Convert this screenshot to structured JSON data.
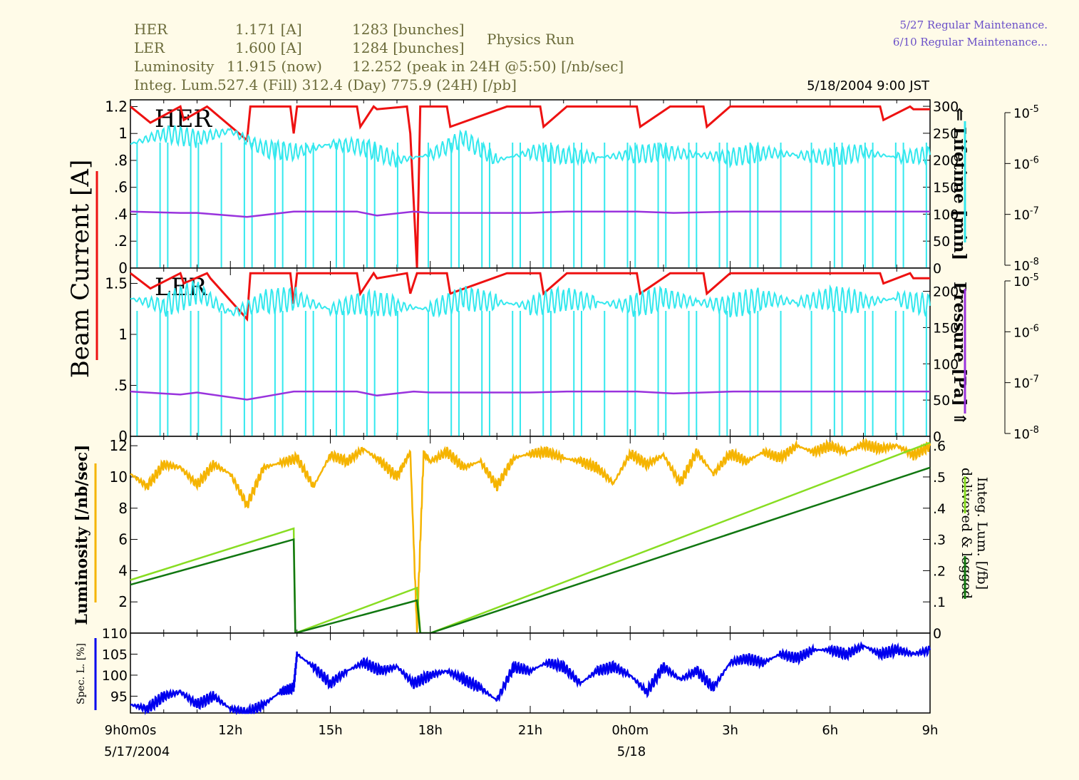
{
  "header": {
    "her_label": "HER",
    "her_current": "1.171  [A]",
    "her_bunches": "1283 [bunches]",
    "ler_label": "LER",
    "ler_current": "1.600  [A]",
    "ler_bunches": "1284 [bunches]",
    "lum_label": "Luminosity",
    "lum_now": "11.915  (now)",
    "lum_peak": "12.252  (peak in 24H @5:50) [/nb/sec]",
    "integ_label": "Integ. Lum.",
    "integ_values": "527.4 (Fill)   312.4 (Day)   775.9 (24H) [/pb]",
    "run_mode": "Physics Run",
    "maintenance_1": "5/27 Regular Maintenance.",
    "maintenance_2": "6/10 Regular Maintenance...",
    "timestamp": "5/18/2004 9:00 JST"
  },
  "labels": {
    "beam_current": "Beam Current [A]",
    "lifetime": "⇐ Lifetime [min]",
    "pressure": "Pressure [Pa] ⇑",
    "luminosity": "Luminosity [/nb/sec]",
    "integ_lum_1": "Integ. Lum. [/fb]",
    "integ_lum_2": "delivered & logged",
    "spec_l": "Spec. L. [%]",
    "her_panel": "HER",
    "ler_panel": "LER",
    "date_start": "5/17/2004",
    "date_mid": "5/18"
  },
  "colors": {
    "current": "#ee1111",
    "lifetime": "#33e8ee",
    "pressure": "#9933dd",
    "luminosity": "#f5b400",
    "integ_delivered": "#88dd22",
    "integ_logged": "#117711",
    "spec_lum": "#0000ee",
    "background": "#fffbe8"
  },
  "chart_data": [
    {
      "type": "line",
      "title": "HER",
      "x_ticks": [
        "9h0m0s",
        "12h",
        "15h",
        "18h",
        "21h",
        "0h0m",
        "3h",
        "6h",
        "9h"
      ],
      "xlim_hours": [
        9,
        33
      ],
      "y_left": {
        "label": "Beam Current [A]",
        "ticks": [
          "0",
          ".2",
          ".4",
          ".6",
          ".8",
          "1",
          "1.2"
        ],
        "range": [
          0,
          1.25
        ]
      },
      "y_right": {
        "label": "Lifetime [min]",
        "ticks": [
          "0",
          "50",
          "100",
          "150",
          "200",
          "250",
          "300"
        ],
        "range": [
          0,
          312
        ]
      },
      "y_pressure": {
        "label": "Pressure [Pa]",
        "scale": "log",
        "ticks": [
          "10^-8",
          "10^-7",
          "10^-6",
          "10^-5"
        ]
      },
      "series": [
        {
          "name": "current",
          "axis": "left",
          "x": [
            9,
            9.6,
            10.5,
            10.6,
            11.3,
            11.4,
            12.5,
            12.6,
            13.8,
            13.9,
            14.0,
            14.1,
            15.8,
            15.9,
            16.3,
            16.4,
            17.3,
            17.4,
            17.6,
            17.7,
            17.8,
            18.5,
            18.6,
            20.3,
            20.4,
            21.3,
            21.4,
            22.1,
            22.2,
            24.2,
            24.3,
            25.2,
            25.3,
            26.2,
            26.3,
            27.0,
            27.1,
            31.5,
            31.6,
            32.4,
            32.5,
            33
          ],
          "y": [
            1.2,
            1.08,
            1.2,
            1.1,
            1.2,
            1.18,
            0.95,
            1.2,
            1.2,
            1.0,
            1.2,
            1.2,
            1.2,
            1.05,
            1.2,
            1.18,
            1.2,
            1.0,
            0.0,
            1.2,
            1.2,
            1.2,
            1.05,
            1.2,
            1.2,
            1.2,
            1.05,
            1.2,
            1.2,
            1.2,
            1.05,
            1.2,
            1.2,
            1.2,
            1.05,
            1.2,
            1.2,
            1.2,
            1.1,
            1.2,
            1.18,
            1.18
          ]
        },
        {
          "name": "lifetime",
          "axis": "right",
          "x": [
            9,
            10,
            11,
            12,
            13,
            14,
            15,
            16,
            17,
            18,
            19,
            20,
            21,
            22,
            23,
            24,
            25,
            26,
            27,
            28,
            29,
            30,
            31,
            32,
            33
          ],
          "y": [
            230,
            250,
            240,
            255,
            220,
            215,
            230,
            225,
            200,
            210,
            240,
            200,
            215,
            210,
            205,
            210,
            215,
            210,
            205,
            215,
            210,
            205,
            215,
            205,
            210
          ]
        },
        {
          "name": "pressure",
          "axis": "left",
          "x": [
            9,
            10.5,
            11,
            12.5,
            13.9,
            15.8,
            16.4,
            17.5,
            18.0,
            21.0,
            22.1,
            24.2,
            25.3,
            27.1,
            31.5,
            33
          ],
          "y": [
            0.42,
            0.41,
            0.41,
            0.38,
            0.42,
            0.42,
            0.39,
            0.42,
            0.41,
            0.41,
            0.42,
            0.42,
            0.41,
            0.42,
            0.42,
            0.42
          ]
        }
      ]
    },
    {
      "type": "line",
      "title": "LER",
      "x_ticks": [
        "9h0m0s",
        "12h",
        "15h",
        "18h",
        "21h",
        "0h0m",
        "3h",
        "6h",
        "9h"
      ],
      "xlim_hours": [
        9,
        33
      ],
      "y_left": {
        "label": "Beam Current [A]",
        "ticks": [
          "0",
          ".5",
          "1",
          "1.5"
        ],
        "range": [
          0,
          1.65
        ]
      },
      "y_right": {
        "label": "Lifetime [min]",
        "ticks": [
          "0",
          "50",
          "100",
          "150",
          "200"
        ],
        "range": [
          0,
          232
        ]
      },
      "y_pressure": {
        "label": "Pressure [Pa]",
        "scale": "log",
        "ticks": [
          "10^-8",
          "10^-7",
          "10^-6",
          "10^-5"
        ]
      },
      "series": [
        {
          "name": "current",
          "axis": "left",
          "x": [
            9,
            9.6,
            10.5,
            10.6,
            11.3,
            11.4,
            12.5,
            12.6,
            13.8,
            13.9,
            14.0,
            14.1,
            15.8,
            15.9,
            16.3,
            16.4,
            17.3,
            17.4,
            17.6,
            17.7,
            17.8,
            18.5,
            18.6,
            20.3,
            20.4,
            21.3,
            21.4,
            22.1,
            22.2,
            24.2,
            24.3,
            25.2,
            25.3,
            26.2,
            26.3,
            27.0,
            27.1,
            31.5,
            31.6,
            32.4,
            32.5,
            33
          ],
          "y": [
            1.6,
            1.45,
            1.6,
            1.5,
            1.6,
            1.55,
            1.15,
            1.6,
            1.6,
            1.3,
            1.6,
            1.6,
            1.6,
            1.4,
            1.6,
            1.55,
            1.6,
            1.4,
            1.6,
            1.6,
            1.6,
            1.6,
            1.4,
            1.6,
            1.6,
            1.6,
            1.4,
            1.6,
            1.6,
            1.6,
            1.4,
            1.6,
            1.6,
            1.6,
            1.4,
            1.6,
            1.6,
            1.6,
            1.5,
            1.6,
            1.55,
            1.55
          ]
        },
        {
          "name": "lifetime",
          "axis": "right",
          "x": [
            9,
            10,
            11,
            12,
            13,
            14,
            15,
            16,
            17,
            18,
            19,
            20,
            21,
            22,
            23,
            24,
            25,
            26,
            27,
            28,
            29,
            30,
            31,
            32,
            33
          ],
          "y": [
            190,
            180,
            200,
            170,
            185,
            190,
            175,
            185,
            180,
            175,
            190,
            185,
            180,
            190,
            185,
            180,
            190,
            185,
            180,
            190,
            185,
            190,
            185,
            190,
            180
          ]
        },
        {
          "name": "pressure",
          "axis": "left",
          "x": [
            9,
            10.5,
            11,
            12.5,
            13.9,
            15.8,
            16.4,
            17.5,
            18.0,
            21.0,
            22.1,
            24.2,
            25.3,
            27.1,
            31.5,
            33
          ],
          "y": [
            0.44,
            0.41,
            0.43,
            0.36,
            0.44,
            0.44,
            0.4,
            0.44,
            0.43,
            0.43,
            0.44,
            0.44,
            0.42,
            0.44,
            0.44,
            0.44
          ]
        }
      ]
    },
    {
      "type": "line",
      "title": "",
      "x_ticks": [
        "9h0m0s",
        "12h",
        "15h",
        "18h",
        "21h",
        "0h0m",
        "3h",
        "6h",
        "9h"
      ],
      "xlim_hours": [
        9,
        33
      ],
      "y_left": {
        "label": "Luminosity [/nb/sec]",
        "ticks": [
          "2",
          "4",
          "6",
          "8",
          "10",
          "12"
        ],
        "range": [
          0,
          12.6
        ]
      },
      "y_right": {
        "label": "Integ. Lum. [/fb] delivered & logged",
        "ticks": [
          "0",
          ".1",
          ".2",
          ".3",
          ".4",
          ".5",
          ".6"
        ],
        "range": [
          0,
          0.63
        ]
      },
      "series": [
        {
          "name": "luminosity",
          "axis": "left",
          "x": [
            9,
            9.5,
            10,
            10.5,
            11,
            11.5,
            12,
            12.5,
            13,
            13.5,
            14,
            14.5,
            15,
            15.5,
            16,
            16.5,
            17,
            17.4,
            17.6,
            17.8,
            18,
            18.5,
            19,
            19.5,
            20,
            20.5,
            21,
            21.5,
            22,
            22.5,
            23,
            23.5,
            24,
            24.5,
            25,
            25.5,
            26,
            26.5,
            27,
            27.5,
            28,
            28.5,
            29,
            29.5,
            30,
            30.5,
            31,
            31.5,
            32,
            32.5,
            33
          ],
          "y": [
            10.2,
            9.4,
            10.8,
            10.6,
            9.5,
            10.8,
            10.2,
            8.2,
            10.6,
            10.9,
            11.2,
            9.4,
            11.4,
            11.0,
            11.8,
            11.0,
            10.0,
            11.6,
            0.2,
            11.5,
            11.0,
            11.6,
            10.6,
            11.0,
            9.4,
            11.2,
            11.5,
            11.6,
            11.2,
            11.0,
            10.6,
            9.6,
            11.5,
            10.8,
            11.4,
            9.6,
            11.6,
            10.2,
            11.5,
            11.0,
            11.6,
            11.2,
            12.0,
            11.6,
            12.0,
            11.6,
            12.1,
            11.8,
            12.0,
            11.4,
            12.0
          ]
        },
        {
          "name": "delivered",
          "axis": "right",
          "x": [
            9,
            13.9,
            13.95,
            17.6,
            17.7,
            18.0,
            33
          ],
          "y": [
            0.17,
            0.335,
            0.0,
            0.145,
            0.0,
            0.0,
            0.61
          ]
        },
        {
          "name": "logged",
          "axis": "right",
          "x": [
            9,
            13.9,
            13.95,
            17.6,
            17.7,
            18.0,
            33
          ],
          "y": [
            0.155,
            0.3,
            0.0,
            0.105,
            0.0,
            0.0,
            0.53
          ]
        }
      ]
    },
    {
      "type": "line",
      "title": "",
      "x_ticks": [
        "9h0m0s",
        "12h",
        "15h",
        "18h",
        "21h",
        "0h0m",
        "3h",
        "6h",
        "9h"
      ],
      "xlim_hours": [
        9,
        33
      ],
      "y_left": {
        "label": "Spec. L. [%]",
        "ticks": [
          "95",
          "100",
          "105",
          "110"
        ],
        "range": [
          91,
          110
        ]
      },
      "series": [
        {
          "name": "spec_lum",
          "axis": "left",
          "x": [
            9,
            9.5,
            10,
            10.5,
            11,
            11.5,
            12,
            12.5,
            13,
            13.5,
            13.9,
            14.0,
            14.5,
            15,
            15.5,
            16,
            16.5,
            17,
            17.5,
            18,
            18.5,
            19,
            19.5,
            20,
            20.5,
            21,
            21.5,
            22,
            22.5,
            23,
            23.5,
            24,
            24.5,
            25,
            25.5,
            26,
            26.5,
            27,
            27.5,
            28,
            28.5,
            29,
            29.5,
            30,
            30.5,
            31,
            31.5,
            32,
            32.5,
            33
          ],
          "y": [
            93,
            92,
            95,
            96,
            93,
            95,
            92,
            91,
            93,
            96,
            97,
            105,
            102,
            98,
            101,
            103,
            101,
            102,
            98,
            100,
            101,
            99,
            97,
            94,
            102,
            101,
            103,
            102,
            98,
            101,
            102,
            100,
            96,
            102,
            99,
            101,
            97,
            103,
            104,
            103,
            105,
            104,
            106,
            106,
            105,
            107,
            105,
            106,
            105,
            106
          ]
        }
      ]
    }
  ]
}
